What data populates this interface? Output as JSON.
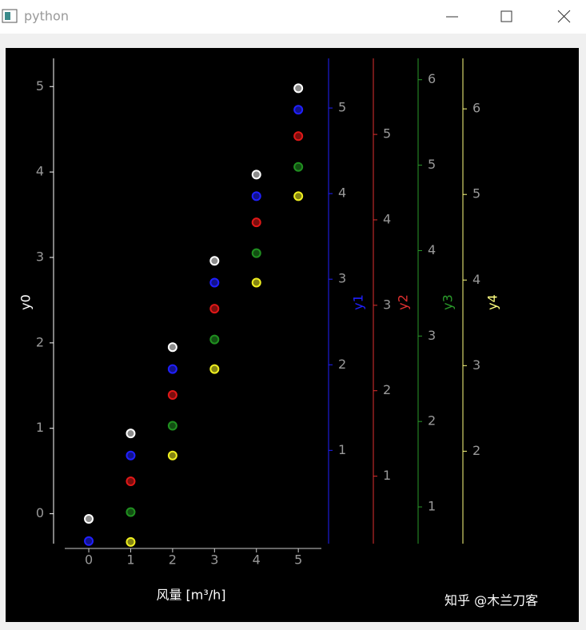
{
  "window": {
    "title": "python"
  },
  "watermark": "知乎 @木兰刀客",
  "chart_data": {
    "type": "scatter",
    "x_label": "风量 [m³/h]",
    "xlim": [
      -0.84,
      5.55
    ],
    "xticks": [
      0,
      1,
      2,
      3,
      4,
      5
    ],
    "axes": [
      {
        "label": "y0",
        "color": "#ffffff",
        "ylim": [
          -0.35,
          5.33
        ],
        "yticks": [
          0,
          1,
          2,
          3,
          4,
          5
        ]
      },
      {
        "label": "y1",
        "color": "#2020ff",
        "ylim": [
          -0.09,
          5.58
        ],
        "yticks": [
          1,
          2,
          3,
          4,
          5
        ]
      },
      {
        "label": "y2",
        "color": "#e03030",
        "ylim": [
          0.21,
          5.89
        ],
        "yticks": [
          1,
          2,
          3,
          4,
          5
        ]
      },
      {
        "label": "y3",
        "color": "#2a9a2a",
        "ylim": [
          0.57,
          6.25
        ],
        "yticks": [
          1,
          2,
          3,
          4,
          5,
          6
        ]
      },
      {
        "label": "y4",
        "color": "#ffff80",
        "ylim": [
          0.92,
          6.59
        ],
        "yticks": [
          2,
          3,
          4,
          5,
          6
        ]
      }
    ],
    "series": [
      {
        "axis": "y0",
        "color": "#ffffff",
        "x": [
          0,
          1,
          2,
          3,
          4,
          5
        ],
        "values": [
          -0.06,
          0.94,
          1.95,
          2.96,
          3.97,
          4.98
        ]
      },
      {
        "axis": "y1",
        "color": "#2020ff",
        "x": [
          0,
          1,
          2,
          3,
          4,
          5
        ],
        "values": [
          -0.06,
          0.94,
          1.95,
          2.96,
          3.97,
          4.98
        ]
      },
      {
        "axis": "y2",
        "color": "#e01818",
        "x": [
          1,
          2,
          3,
          4,
          5
        ],
        "values": [
          0.94,
          1.95,
          2.96,
          3.97,
          4.98
        ]
      },
      {
        "axis": "y3",
        "color": "#209020",
        "x": [
          1,
          2,
          3,
          4,
          5
        ],
        "values": [
          0.94,
          1.95,
          2.96,
          3.97,
          4.98
        ]
      },
      {
        "axis": "y4",
        "color": "#f0f020",
        "x": [
          1,
          2,
          3,
          4,
          5
        ],
        "values": [
          0.94,
          1.95,
          2.96,
          3.97,
          4.98
        ]
      }
    ]
  }
}
